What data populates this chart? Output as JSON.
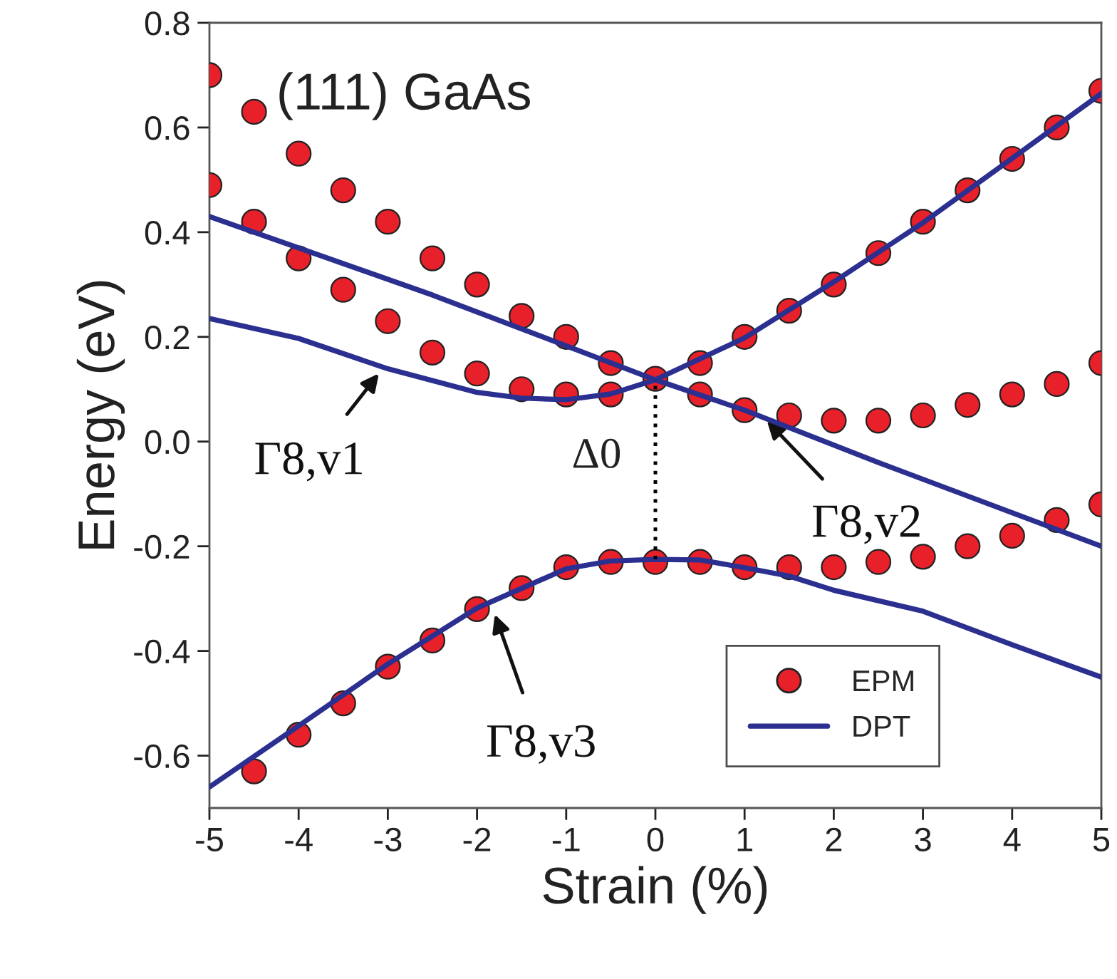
{
  "chart_data": {
    "type": "scatter",
    "xlabel": "Strain (%)",
    "ylabel": "Energy (eV)",
    "xlim": [
      -5,
      5
    ],
    "xticks": [
      -5,
      -4,
      -3,
      -2,
      -1,
      0,
      1,
      2,
      3,
      4,
      5
    ],
    "ylim": [
      -0.7,
      0.8
    ],
    "yticks": [
      {
        "value": -0.6,
        "label": "-0.6"
      },
      {
        "value": -0.4,
        "label": "-0.4"
      },
      {
        "value": -0.2,
        "label": "-0.2"
      },
      {
        "value": 0.0,
        "label": "0.0"
      },
      {
        "value": 0.2,
        "label": "0.2"
      },
      {
        "value": 0.4,
        "label": "0.4"
      },
      {
        "value": 0.6,
        "label": "0.6"
      },
      {
        "value": 0.8,
        "label": "0.8"
      }
    ],
    "grid": false,
    "legend": "bottom right",
    "series": [
      {
        "name": "DPT",
        "type": "line",
        "color": "#2b2f8f",
        "line_style": "solid",
        "x": [
          -5,
          -2.5,
          0,
          1,
          2.5,
          5
        ],
        "values": [
          0.43,
          0.28,
          0.118,
          0.06,
          -0.04,
          -0.2
        ]
      },
      {
        "type": "line",
        "color": "#2b2f8f",
        "line_style": "solid",
        "x": [
          -5,
          -4,
          -3,
          -2,
          -1.5,
          -1,
          -0.5,
          0,
          1,
          2,
          3,
          4,
          5
        ],
        "values": [
          0.235,
          0.197,
          0.139,
          0.094,
          0.083,
          0.08,
          0.091,
          0.118,
          0.198,
          0.305,
          0.418,
          0.541,
          0.665
        ]
      },
      {
        "type": "line",
        "color": "#2b2f8f",
        "line_style": "solid",
        "x": [
          -5,
          -4,
          -3,
          -2,
          -1,
          -0.5,
          0,
          0.5,
          1,
          1.5,
          2,
          3,
          4,
          5
        ],
        "values": [
          -0.66,
          -0.543,
          -0.425,
          -0.318,
          -0.243,
          -0.228,
          -0.225,
          -0.226,
          -0.241,
          -0.257,
          -0.284,
          -0.324,
          -0.388,
          -0.45
        ]
      },
      {
        "type": "line",
        "color": "#000000",
        "line_style": "dotted",
        "x": [
          0,
          0
        ],
        "values": [
          -0.225,
          0.118
        ]
      },
      {
        "name": "EPM",
        "color": "#e8202a",
        "marker": "circle",
        "x": [
          -5,
          -4.5,
          -4,
          -3.5,
          -3,
          -2.5,
          -2,
          -1.5,
          -1,
          -0.5,
          0,
          -5,
          -4.5,
          -4,
          -3.5,
          -3,
          -2.5,
          -2,
          -1.5,
          -1,
          -0.5,
          0.5,
          1,
          1.5,
          2,
          2.5,
          3,
          3.5,
          4,
          4.5,
          5,
          0.5,
          1,
          1.5,
          2,
          2.5,
          3,
          3.5,
          4,
          4.5,
          5,
          -4.5,
          -4,
          -3.5,
          -3,
          -2.5,
          -2,
          -1.5,
          -1,
          -0.5,
          0,
          0.5,
          1,
          1.5,
          2,
          2.5,
          3,
          3.5,
          4,
          4.5,
          5
        ],
        "values": [
          0.7,
          0.63,
          0.55,
          0.48,
          0.42,
          0.35,
          0.3,
          0.24,
          0.2,
          0.15,
          0.12,
          0.49,
          0.42,
          0.35,
          0.29,
          0.23,
          0.17,
          0.13,
          0.1,
          0.09,
          0.09,
          0.15,
          0.2,
          0.25,
          0.3,
          0.36,
          0.42,
          0.48,
          0.54,
          0.6,
          0.67,
          0.09,
          0.06,
          0.05,
          0.04,
          0.04,
          0.05,
          0.07,
          0.09,
          0.11,
          0.15,
          -0.63,
          -0.56,
          -0.5,
          -0.43,
          -0.38,
          -0.32,
          -0.28,
          -0.24,
          -0.23,
          -0.23,
          -0.23,
          -0.24,
          -0.24,
          -0.24,
          -0.23,
          -0.22,
          -0.2,
          -0.18,
          -0.15,
          -0.12
        ]
      }
    ],
    "annotations": [
      "(111) GaAs",
      "Δ0",
      {
        "text": "Γ8,v1",
        "x": -3.1,
        "y": 0.13
      },
      {
        "text": "Γ8,v2",
        "x": 1.25,
        "y": 0.04
      },
      {
        "text": "Γ8,v3",
        "x": -1.8,
        "y": -0.33
      }
    ]
  }
}
